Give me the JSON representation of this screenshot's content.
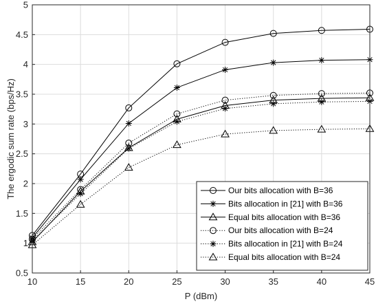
{
  "chart_data": {
    "type": "line",
    "xlabel": "P (dBm)",
    "ylabel": "The ergodic sum rate (bps/Hz)",
    "xlim": [
      10,
      45
    ],
    "ylim": [
      0.5,
      5
    ],
    "xticks": [
      10,
      15,
      20,
      25,
      30,
      35,
      40,
      45
    ],
    "yticks": [
      0.5,
      1,
      1.5,
      2,
      2.5,
      3,
      3.5,
      4,
      4.5,
      5
    ],
    "xtick_labels": [
      "10",
      "15",
      "20",
      "25",
      "30",
      "35",
      "40",
      "45"
    ],
    "ytick_labels": [
      "0.5",
      "1",
      "1.5",
      "2",
      "2.5",
      "3",
      "3.5",
      "4",
      "4.5",
      "5"
    ],
    "grid": true,
    "legend_position": "bottom-right",
    "x": [
      10,
      15,
      20,
      25,
      30,
      35,
      40,
      45
    ],
    "series": [
      {
        "name": "Our bits allocation with B=36",
        "marker": "circle",
        "line": "solid",
        "color": "#000000",
        "values": [
          1.13,
          2.16,
          3.27,
          4.01,
          4.37,
          4.52,
          4.57,
          4.59
        ]
      },
      {
        "name": "Bits allocation in [21] with B=36",
        "marker": "star",
        "line": "solid",
        "color": "#000000",
        "values": [
          1.09,
          2.07,
          3.01,
          3.61,
          3.91,
          4.03,
          4.07,
          4.08
        ]
      },
      {
        "name": "Equal bits allocation with B=36",
        "marker": "triangle",
        "line": "solid",
        "color": "#000000",
        "values": [
          1.02,
          1.87,
          2.6,
          3.08,
          3.31,
          3.4,
          3.43,
          3.44
        ]
      },
      {
        "name": "Our bits allocation with B=24",
        "marker": "circle",
        "line": "dotted",
        "color": "#000000",
        "values": [
          1.07,
          1.9,
          2.68,
          3.17,
          3.4,
          3.48,
          3.51,
          3.52
        ]
      },
      {
        "name": "Bits allocation in [21] with B=24",
        "marker": "star",
        "line": "dotted",
        "color": "#000000",
        "values": [
          1.04,
          1.83,
          2.59,
          3.04,
          3.26,
          3.34,
          3.37,
          3.38
        ]
      },
      {
        "name": "Equal bits allocation with B=24",
        "marker": "triangle",
        "line": "dotted",
        "color": "#000000",
        "values": [
          0.97,
          1.65,
          2.27,
          2.65,
          2.83,
          2.89,
          2.91,
          2.92
        ]
      }
    ]
  }
}
